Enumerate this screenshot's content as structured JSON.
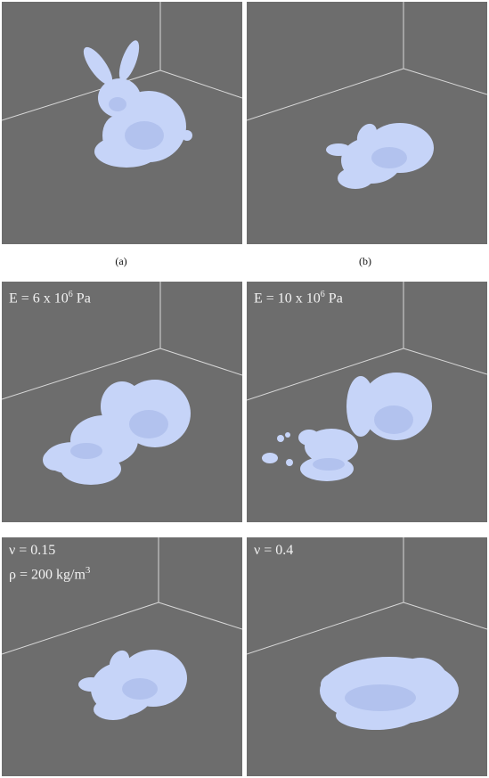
{
  "panels": {
    "a": {
      "caption": "(a)"
    },
    "b": {
      "caption": "(b)"
    },
    "c": {
      "label_prefix": "E = 6 x 10",
      "label_exp": "6",
      "label_unit": " Pa"
    },
    "d": {
      "label_prefix": "E = 10 x 10",
      "label_exp": "6",
      "label_unit": " Pa"
    },
    "e": {
      "line1": "ν = 0.15",
      "line2_prefix": "ρ = 200 kg/m",
      "line2_exp": "3"
    },
    "f": {
      "line1": "ν = 0.4"
    }
  },
  "colors": {
    "background": "#6d6d6d",
    "bunny": "#c6d4f8",
    "bunny_shade": "#a9bbea",
    "grid_lines": "#d8d8d8"
  }
}
